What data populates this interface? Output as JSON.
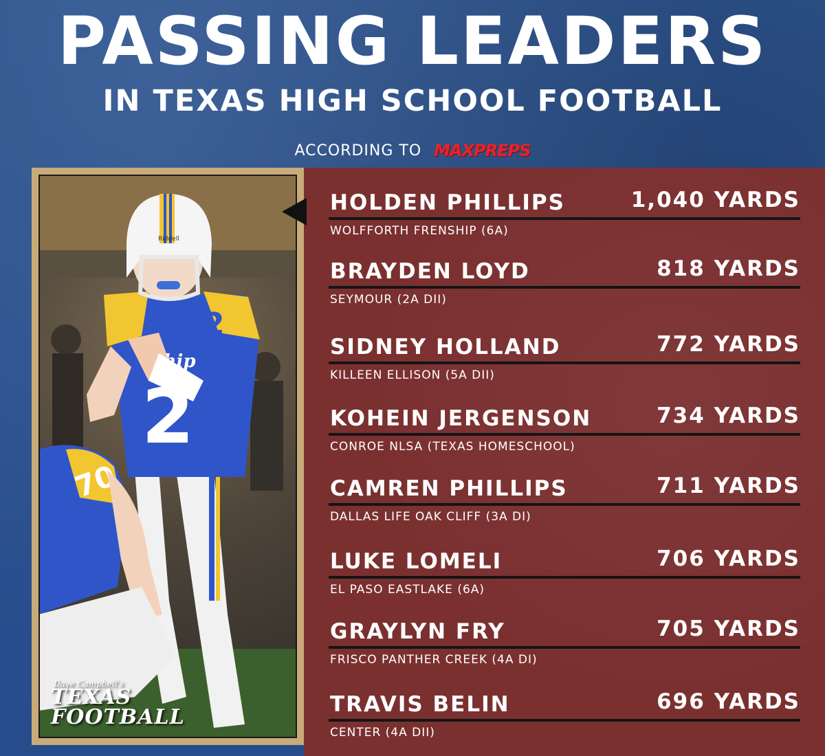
{
  "header": {
    "title": "PASSING LEADERS",
    "subtitle": "IN TEXAS HIGH SCHOOL FOOTBALL",
    "according_to": "ACCORDING TO",
    "source_logo": "MAXPREPS"
  },
  "photo": {
    "logo_small": "Dave Campbell's",
    "logo_line1": "TEXAS",
    "logo_line2": "FOOTBALL",
    "helmet_text": "Riddell",
    "jersey_text": "nship",
    "jersey_number": "2",
    "lineman_number": "70"
  },
  "colors": {
    "background_blue": "#2a4f92",
    "list_panel_maroon": "#7b3030",
    "frame_gold": "#c8ab78",
    "maxpreps_red": "#e8232a",
    "jersey_blue": "#2f55c9",
    "jersey_gold": "#f2c630"
  },
  "leaders": [
    {
      "name": "HOLDEN PHILLIPS",
      "yards": "1,040 YARDS",
      "school": "WOLFFORTH FRENSHIP (6A)"
    },
    {
      "name": "BRAYDEN LOYD",
      "yards": "818 YARDS",
      "school": "SEYMOUR (2A DII)"
    },
    {
      "name": "SIDNEY HOLLAND",
      "yards": "772 YARDS",
      "school": "KILLEEN ELLISON (5A DII)"
    },
    {
      "name": "KOHEIN JERGENSON",
      "yards": "734 YARDS",
      "school": "CONROE NLSA (TEXAS HOMESCHOOL)"
    },
    {
      "name": "CAMREN PHILLIPS",
      "yards": "711 YARDS",
      "school": "DALLAS LIFE OAK CLIFF (3A DI)"
    },
    {
      "name": "LUKE LOMELI",
      "yards": "706 YARDS",
      "school": "EL PASO EASTLAKE (6A)"
    },
    {
      "name": "GRAYLYN FRY",
      "yards": "705 YARDS",
      "school": "FRISCO PANTHER CREEK (4A DI)"
    },
    {
      "name": "TRAVIS BELIN",
      "yards": "696 YARDS",
      "school": "CENTER (4A DII)"
    }
  ]
}
